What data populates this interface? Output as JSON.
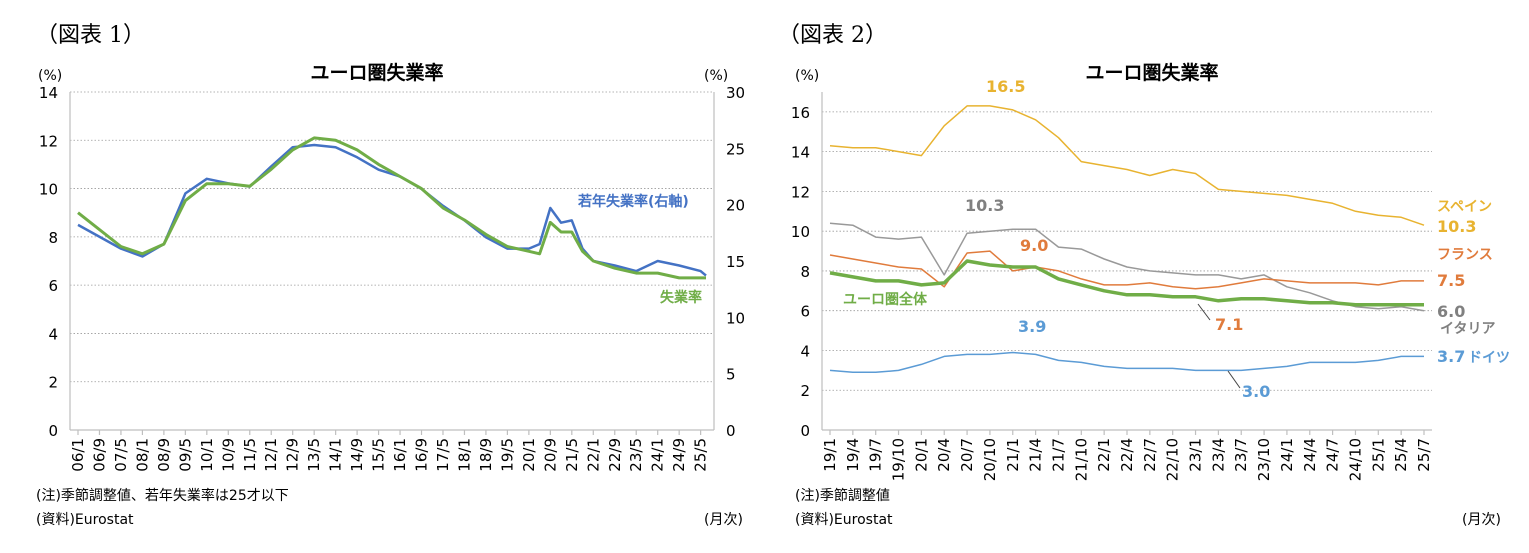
{
  "chart_data": [
    {
      "type": "line",
      "figure_label": "（図表 1）",
      "title": "ユーロ圏失業率",
      "left_unit": "(%)",
      "right_unit": "(%)",
      "ylim_left": [
        0,
        14
      ],
      "yticks_left": [
        0,
        2,
        4,
        6,
        8,
        10,
        12,
        14
      ],
      "ylim_right": [
        0,
        30
      ],
      "yticks_right": [
        0,
        5,
        10,
        15,
        20,
        25,
        30
      ],
      "xticks": [
        "06/1",
        "06/9",
        "07/5",
        "08/1",
        "08/9",
        "09/5",
        "10/1",
        "10/9",
        "11/5",
        "12/1",
        "12/9",
        "13/5",
        "14/1",
        "14/9",
        "15/5",
        "16/1",
        "16/9",
        "17/5",
        "18/1",
        "18/9",
        "19/5",
        "20/1",
        "20/9",
        "21/5",
        "22/1",
        "22/9",
        "23/5",
        "24/1",
        "24/9",
        "25/5"
      ],
      "grid": true,
      "x": [
        "06/1",
        "07/5",
        "08/1",
        "08/9",
        "09/5",
        "10/1",
        "10/9",
        "11/5",
        "12/1",
        "12/9",
        "13/5",
        "14/1",
        "14/9",
        "15/5",
        "16/1",
        "16/9",
        "17/5",
        "18/1",
        "18/9",
        "19/5",
        "20/1",
        "20/5",
        "20/9",
        "21/1",
        "21/5",
        "21/9",
        "22/1",
        "22/9",
        "23/5",
        "24/1",
        "24/9",
        "25/5",
        "25/7"
      ],
      "series": [
        {
          "name": "若年失業率(右軸)",
          "axis": "right",
          "color": "#4472c4",
          "values": [
            18.2,
            16.1,
            15.4,
            16.5,
            21.0,
            22.3,
            21.9,
            21.6,
            23.4,
            25.1,
            25.3,
            25.1,
            24.2,
            23.1,
            22.5,
            21.4,
            19.9,
            18.6,
            17.1,
            16.1,
            16.1,
            16.5,
            19.7,
            18.4,
            18.6,
            16.1,
            15.0,
            14.6,
            14.1,
            15.0,
            14.6,
            14.1,
            13.7
          ]
        },
        {
          "name": "失業率",
          "axis": "left",
          "color": "#70ad47",
          "values": [
            9.0,
            7.6,
            7.3,
            7.7,
            9.5,
            10.2,
            10.2,
            10.1,
            10.8,
            11.6,
            12.1,
            12.0,
            11.6,
            11.0,
            10.5,
            10.0,
            9.2,
            8.7,
            8.1,
            7.6,
            7.4,
            7.3,
            8.6,
            8.2,
            8.2,
            7.4,
            7.0,
            6.7,
            6.5,
            6.5,
            6.3,
            6.3,
            6.3
          ]
        }
      ],
      "note": "(注)季節調整値、若年失業率は25才以下",
      "source": "(資料)Eurostat",
      "x_unit": "(月次)"
    },
    {
      "type": "line",
      "figure_label": "（図表 2）",
      "title": "ユーロ圏失業率",
      "left_unit": "(%)",
      "ylim_left": [
        0,
        17
      ],
      "yticks_left": [
        0,
        2,
        4,
        6,
        8,
        10,
        12,
        14,
        16
      ],
      "xticks": [
        "19/1",
        "19/4",
        "19/7",
        "19/10",
        "20/1",
        "20/4",
        "20/7",
        "20/10",
        "21/1",
        "21/4",
        "21/7",
        "21/10",
        "22/1",
        "22/4",
        "22/7",
        "22/10",
        "23/1",
        "23/4",
        "23/7",
        "23/10",
        "24/1",
        "24/4",
        "24/7",
        "24/10",
        "25/1",
        "25/4",
        "25/7"
      ],
      "grid": true,
      "x": [
        "19/1",
        "19/4",
        "19/7",
        "19/10",
        "20/1",
        "20/4",
        "20/7",
        "20/10",
        "21/1",
        "21/4",
        "21/7",
        "21/10",
        "22/1",
        "22/4",
        "22/7",
        "22/10",
        "23/1",
        "23/4",
        "23/7",
        "23/10",
        "24/1",
        "24/4",
        "24/7",
        "24/10",
        "25/1",
        "25/4",
        "25/7"
      ],
      "series": [
        {
          "name": "スペイン",
          "color": "#e8b330",
          "values": [
            14.3,
            14.2,
            14.2,
            14.0,
            13.8,
            15.3,
            16.3,
            16.3,
            16.1,
            15.6,
            14.7,
            13.5,
            13.3,
            13.1,
            12.8,
            13.1,
            12.9,
            12.1,
            12.0,
            11.9,
            11.8,
            11.6,
            11.4,
            11.0,
            10.8,
            10.7,
            10.3
          ]
        },
        {
          "name": "イタリア",
          "color": "#999999",
          "values": [
            10.4,
            10.3,
            9.7,
            9.6,
            9.7,
            7.8,
            9.9,
            10.0,
            10.1,
            10.1,
            9.2,
            9.1,
            8.6,
            8.2,
            8.0,
            7.9,
            7.8,
            7.8,
            7.6,
            7.8,
            7.2,
            6.9,
            6.5,
            6.2,
            6.1,
            6.2,
            6.0
          ]
        },
        {
          "name": "フランス",
          "color": "#e07b3c",
          "values": [
            8.8,
            8.6,
            8.4,
            8.2,
            8.1,
            7.2,
            8.9,
            9.0,
            8.0,
            8.2,
            8.0,
            7.6,
            7.3,
            7.3,
            7.4,
            7.2,
            7.1,
            7.2,
            7.4,
            7.6,
            7.5,
            7.4,
            7.4,
            7.4,
            7.3,
            7.5,
            7.5
          ]
        },
        {
          "name": "ユーロ圏全体",
          "color": "#70ad47",
          "values": [
            7.9,
            7.7,
            7.5,
            7.5,
            7.3,
            7.4,
            8.5,
            8.3,
            8.2,
            8.2,
            7.6,
            7.3,
            7.0,
            6.8,
            6.8,
            6.7,
            6.7,
            6.5,
            6.6,
            6.6,
            6.5,
            6.4,
            6.4,
            6.3,
            6.3,
            6.3,
            6.3
          ]
        },
        {
          "name": "ドイツ",
          "color": "#5b9bd5",
          "values": [
            3.0,
            2.9,
            2.9,
            3.0,
            3.3,
            3.7,
            3.8,
            3.8,
            3.9,
            3.8,
            3.5,
            3.4,
            3.2,
            3.1,
            3.1,
            3.1,
            3.0,
            3.0,
            3.0,
            3.1,
            3.2,
            3.4,
            3.4,
            3.4,
            3.5,
            3.7,
            3.7
          ]
        }
      ],
      "annotations": {
        "spain_peak": "16.5",
        "italy_peak": "10.3",
        "france_peak": "9.0",
        "germany_peak": "3.9",
        "france_low": "7.1",
        "germany_low": "3.0",
        "spain_last": "10.3",
        "france_last": "7.5",
        "italy_last": "6.0",
        "germany_last": "3.7"
      },
      "note": "(注)季節調整値",
      "source": "(資料)Eurostat",
      "x_unit": "(月次)"
    }
  ]
}
